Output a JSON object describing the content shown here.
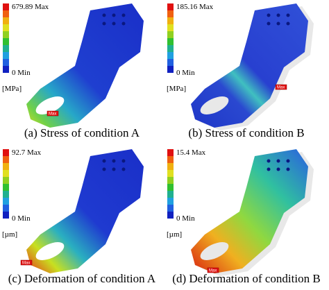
{
  "panels": [
    {
      "caption": "(a) Stress of condition A",
      "legend_max": "679.89 Max",
      "legend_min": "0 Min",
      "unit": "[MPa]",
      "marker": "Max"
    },
    {
      "caption": "(b) Stress of condition B",
      "legend_max": "185.16 Max",
      "legend_min": "0 Min",
      "unit": "[MPa]",
      "marker": "Max"
    },
    {
      "caption": "(c) Deformation of condition A",
      "legend_max": "92.7 Max",
      "legend_min": "0 Min",
      "unit": "[µm]",
      "marker": "Max"
    },
    {
      "caption": "(d) Deformation of condition B",
      "legend_max": "15.4 Max",
      "legend_min": "0 Min",
      "unit": "[µm]",
      "marker": "Max"
    }
  ]
}
